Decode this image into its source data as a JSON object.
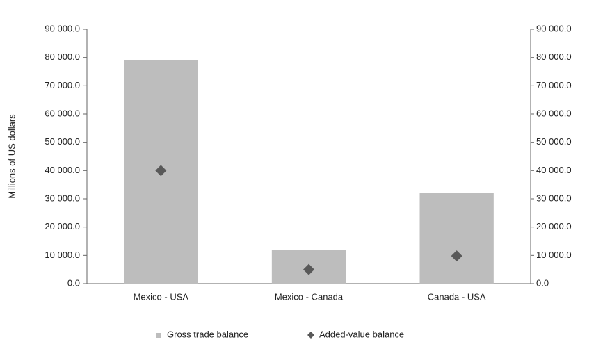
{
  "chart_data": {
    "type": "bar",
    "ylabel": "Millions of US dollars",
    "categories": [
      "Mexico - USA",
      "Mexico - Canada",
      "Canada - USA"
    ],
    "series": [
      {
        "name": "Gross trade balance",
        "type": "bar",
        "color": "#bdbdbd",
        "values": [
          79000,
          12000,
          32000
        ]
      },
      {
        "name": "Added-value balance",
        "type": "scatter",
        "marker": "diamond",
        "color": "#595959",
        "axis": "y2",
        "values": [
          40000,
          5000,
          9800
        ]
      }
    ],
    "ylim": [
      0,
      90000
    ],
    "yticks": [
      {
        "value": 0,
        "label": "0.0"
      },
      {
        "value": 10000,
        "label": "10 000.0"
      },
      {
        "value": 20000,
        "label": "20 000.0"
      },
      {
        "value": 30000,
        "label": "30 000.0"
      },
      {
        "value": 40000,
        "label": "40 000.0"
      },
      {
        "value": 50000,
        "label": "50 000.0"
      },
      {
        "value": 60000,
        "label": "60 000.0"
      },
      {
        "value": 70000,
        "label": "70 000.0"
      },
      {
        "value": 80000,
        "label": "80 000.0"
      },
      {
        "value": 90000,
        "label": "90 000.0"
      }
    ],
    "y2lim": [
      0,
      90000
    ],
    "y2ticks": [
      {
        "value": 0,
        "label": "0.0"
      },
      {
        "value": 10000,
        "label": "10 000.0"
      },
      {
        "value": 20000,
        "label": "20 000.0"
      },
      {
        "value": 30000,
        "label": "30 000.0"
      },
      {
        "value": 40000,
        "label": "40 000.0"
      },
      {
        "value": 50000,
        "label": "50 000.0"
      },
      {
        "value": 60000,
        "label": "60 000.0"
      },
      {
        "value": 70000,
        "label": "70 000.0"
      },
      {
        "value": 80000,
        "label": "80 000.0"
      },
      {
        "value": 90000,
        "label": "90 000.0"
      }
    ],
    "grid": false,
    "legend": "bottom"
  }
}
